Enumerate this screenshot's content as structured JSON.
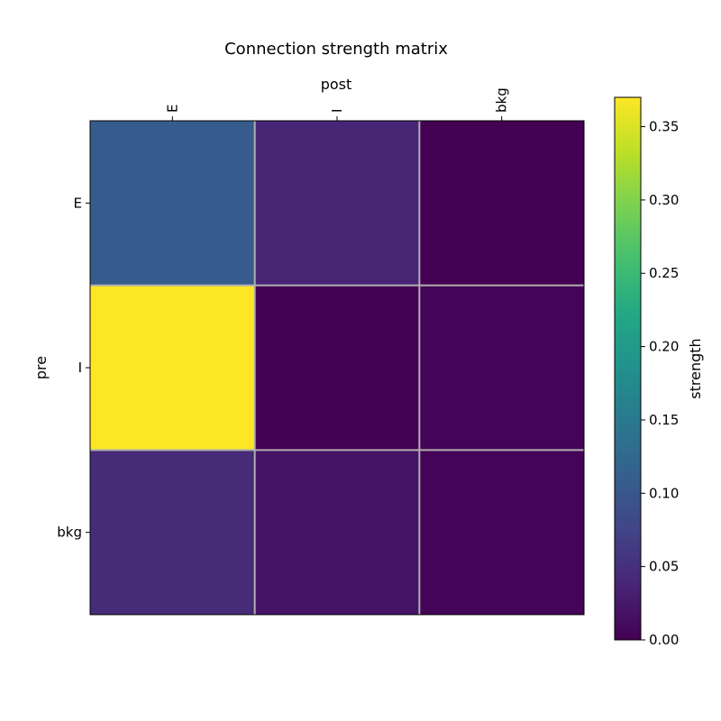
{
  "chart_data": {
    "type": "heatmap",
    "title": "Connection strength matrix",
    "xlabel": "post",
    "ylabel": "pre",
    "x_categories": [
      "E",
      "I",
      "bkg"
    ],
    "y_categories": [
      "E",
      "I",
      "bkg"
    ],
    "values": [
      [
        0.105,
        0.037,
        0.0
      ],
      [
        0.37,
        0.0,
        0.003
      ],
      [
        0.045,
        0.02,
        0.003
      ]
    ],
    "grid": true,
    "colorbar": {
      "label": "strength",
      "colormap": "viridis",
      "range": [
        0,
        0.37
      ],
      "ticks": [
        0.0,
        0.05,
        0.1,
        0.15,
        0.2,
        0.25,
        0.3,
        0.35
      ],
      "tick_labels": [
        "0.00",
        "0.05",
        "0.10",
        "0.15",
        "0.20",
        "0.25",
        "0.30",
        "0.35"
      ]
    }
  }
}
